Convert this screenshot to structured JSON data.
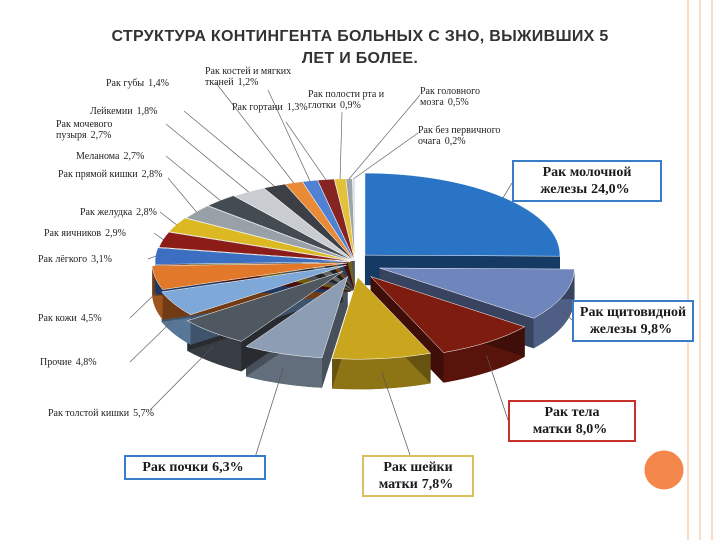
{
  "chart_data": {
    "type": "pie",
    "title": "СТРУКТУРА КОНТИНГЕНТА БОЛЬНЫХ С ЗНО, ВЫЖИВШИХ 5 ЛЕТ И БОЛЕЕ.",
    "categories": [
      "Рак молочной железы",
      "Рак щитовидной железы",
      "Рак тела матки",
      "Рак шейки матки",
      "Рак почки",
      "Рак толстой кишки",
      "Прочие",
      "Рак кожи",
      "Рак лёгкого",
      "Рак яичников",
      "Рак желудка",
      "Рак прямой кишки",
      "Меланома",
      "Рак мочевого пузыря",
      "Лейкемии",
      "Рак губы",
      "Рак костей и мягких тканей",
      "Рак гортани",
      "Рак полости рта и глотки",
      "Рак головного мозга",
      "Рак без первичного очага"
    ],
    "values": [
      24.0,
      9.8,
      8.0,
      7.8,
      6.3,
      5.7,
      4.8,
      4.5,
      3.1,
      2.9,
      2.8,
      2.8,
      2.7,
      2.7,
      1.8,
      1.4,
      1.2,
      1.3,
      0.9,
      0.5,
      0.2
    ],
    "value_labels": [
      "24,0%",
      "9,8%",
      "8,0%",
      "7,8%",
      "6,3%",
      "5,7%",
      "4,8%",
      "4,5%",
      "3,1%",
      "2,9%",
      "2,8%",
      "2,8%",
      "2,7%",
      "2,7%",
      "1,8%",
      "1,4%",
      "1,2%",
      "1,3%",
      "0,9%",
      "0,5%",
      "0,2%"
    ],
    "colors": [
      "#2a74c6",
      "#6f86bd",
      "#7e1c10",
      "#c9a61e",
      "#8d9db3",
      "#4f5760",
      "#7ea8d8",
      "#e2782a",
      "#3c6fc2",
      "#8c1c18",
      "#dcb822",
      "#98a0a8",
      "#454b52",
      "#c9cdd2",
      "#3c4046",
      "#e88a36",
      "#5181d2",
      "#862424",
      "#e2c23a",
      "#9ea4aa",
      "#d4dde8"
    ]
  }
}
